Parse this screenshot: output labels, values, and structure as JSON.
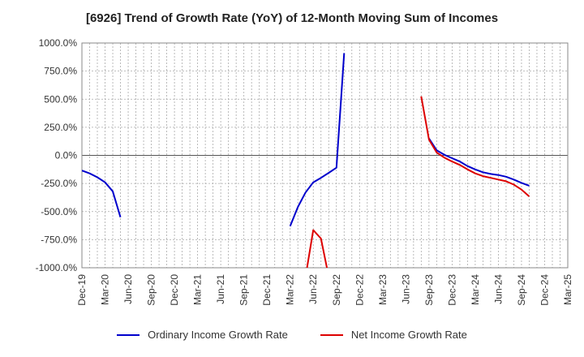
{
  "chart_data": {
    "type": "line",
    "title": "[6926]  Trend of Growth Rate (YoY) of 12-Month Moving Sum of Incomes",
    "xlabel": "",
    "ylabel": "",
    "ylim": [
      -1000,
      1000
    ],
    "y_ticks": [
      "1000.0%",
      "750.0%",
      "500.0%",
      "250.0%",
      "0.0%",
      "-250.0%",
      "-500.0%",
      "-750.0%",
      "-1000.0%"
    ],
    "y_tick_values": [
      1000,
      750,
      500,
      250,
      0,
      -250,
      -500,
      -750,
      -1000
    ],
    "x_ticks": [
      "Dec-19",
      "Mar-20",
      "Jun-20",
      "Sep-20",
      "Dec-20",
      "Mar-21",
      "Jun-21",
      "Sep-21",
      "Dec-21",
      "Mar-22",
      "Jun-22",
      "Sep-22",
      "Dec-22",
      "Mar-23",
      "Jun-23",
      "Sep-23",
      "Dec-23",
      "Mar-24",
      "Jun-24",
      "Sep-24",
      "Dec-24",
      "Mar-25"
    ],
    "grid": true,
    "legend_position": "bottom",
    "series": [
      {
        "name": "Ordinary Income Growth Rate",
        "color": "#0000cc",
        "points": [
          [
            0,
            -135
          ],
          [
            1,
            -160
          ],
          [
            2,
            -195
          ],
          [
            3,
            -240
          ],
          [
            4,
            -320
          ],
          [
            5,
            -550
          ],
          null,
          [
            27,
            -630
          ],
          [
            28,
            -460
          ],
          [
            29,
            -330
          ],
          [
            30,
            -240
          ],
          [
            31,
            -200
          ],
          [
            32,
            -155
          ],
          [
            33,
            -110
          ],
          [
            34,
            910
          ],
          null,
          [
            45,
            150
          ],
          [
            46,
            45
          ],
          [
            47,
            5
          ],
          [
            48,
            -25
          ],
          [
            49,
            -55
          ],
          [
            50,
            -95
          ],
          [
            51,
            -125
          ],
          [
            52,
            -150
          ],
          [
            53,
            -165
          ],
          [
            54,
            -175
          ],
          [
            55,
            -190
          ],
          [
            56,
            -215
          ],
          [
            57,
            -245
          ],
          [
            58,
            -270
          ]
        ]
      },
      {
        "name": "Net Income Growth Rate",
        "color": "#dd0000",
        "points": [
          [
            29,
            -1080
          ],
          [
            30,
            -665
          ],
          [
            31,
            -740
          ],
          [
            32,
            -1080
          ],
          null,
          [
            44,
            525
          ],
          [
            45,
            140
          ],
          [
            46,
            25
          ],
          [
            47,
            -20
          ],
          [
            48,
            -55
          ],
          [
            49,
            -85
          ],
          [
            50,
            -125
          ],
          [
            51,
            -160
          ],
          [
            52,
            -185
          ],
          [
            53,
            -200
          ],
          [
            54,
            -215
          ],
          [
            55,
            -230
          ],
          [
            56,
            -260
          ],
          [
            57,
            -305
          ],
          [
            58,
            -365
          ]
        ]
      }
    ]
  }
}
